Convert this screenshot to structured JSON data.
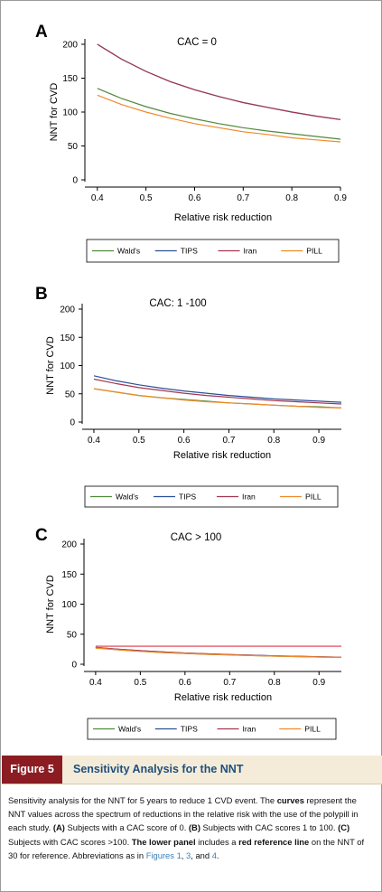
{
  "panels": [
    {
      "letter": "A",
      "title": "CAC = 0",
      "ylabel": "NNT for CVD",
      "xlabel": "Relative risk reduction",
      "legend": [
        "Wald's",
        "TIPS",
        "Iran",
        "PILL"
      ]
    },
    {
      "letter": "B",
      "title": "CAC: 1 -100",
      "ylabel": "NNT for CVD",
      "xlabel": "Relative risk reduction",
      "legend": [
        "Wald's",
        "TIPS",
        "Iran",
        "PILL"
      ]
    },
    {
      "letter": "C",
      "title": "CAC > 100",
      "ylabel": "NNT for CVD",
      "xlabel": "Relative risk reduction",
      "legend": [
        "Wald's",
        "TIPS",
        "Iran",
        "PILL"
      ]
    }
  ],
  "series_colors": {
    "Wald's": "#4f8a3a",
    "TIPS": "#2a4f9a",
    "Iran": "#a3364f",
    "PILL": "#f08a2a",
    "Reference": "#e05a6a"
  },
  "chart_data": [
    {
      "type": "line",
      "xlim": [
        0.38,
        0.9
      ],
      "ylim": [
        0,
        200
      ],
      "xticks": [
        0.4,
        0.5,
        0.6,
        0.7,
        0.8,
        0.9
      ],
      "yticks": [
        0,
        50,
        100,
        150,
        200
      ],
      "grid": false,
      "legend_position": "bottom",
      "x": [
        0.4,
        0.45,
        0.5,
        0.55,
        0.6,
        0.65,
        0.7,
        0.75,
        0.8,
        0.85,
        0.9
      ],
      "series": [
        {
          "name": "Wald's",
          "values": [
            135,
            120,
            108,
            98,
            90,
            83,
            77,
            72,
            68,
            64,
            60
          ]
        },
        {
          "name": "TIPS",
          "values": [
            200,
            178,
            160,
            145,
            133,
            123,
            114,
            107,
            100,
            94,
            89
          ]
        },
        {
          "name": "Iran",
          "values": [
            200,
            178,
            160,
            145,
            133,
            123,
            114,
            107,
            100,
            94,
            89
          ]
        },
        {
          "name": "PILL",
          "values": [
            125,
            111,
            100,
            91,
            83,
            77,
            71,
            67,
            62,
            59,
            56
          ]
        }
      ]
    },
    {
      "type": "line",
      "xlim": [
        0.38,
        0.95
      ],
      "ylim": [
        0,
        200
      ],
      "xticks": [
        0.4,
        0.5,
        0.6,
        0.7,
        0.8,
        0.9
      ],
      "yticks": [
        0,
        50,
        100,
        150,
        200
      ],
      "grid": false,
      "legend_position": "bottom",
      "x": [
        0.4,
        0.45,
        0.5,
        0.55,
        0.6,
        0.65,
        0.7,
        0.75,
        0.8,
        0.85,
        0.9,
        0.95
      ],
      "series": [
        {
          "name": "Wald's",
          "values": [
            59,
            53,
            47,
            43,
            40,
            37,
            34,
            32,
            30,
            28,
            27,
            25
          ]
        },
        {
          "name": "TIPS",
          "values": [
            82,
            73,
            66,
            60,
            55,
            51,
            47,
            44,
            41,
            39,
            37,
            35
          ]
        },
        {
          "name": "Iran",
          "values": [
            76,
            68,
            61,
            56,
            51,
            47,
            44,
            41,
            38,
            36,
            34,
            32
          ]
        },
        {
          "name": "PILL",
          "values": [
            59,
            53,
            47,
            43,
            39,
            36,
            34,
            32,
            30,
            28,
            26,
            25
          ]
        }
      ]
    },
    {
      "type": "line",
      "xlim": [
        0.38,
        0.95
      ],
      "ylim": [
        0,
        200
      ],
      "xticks": [
        0.4,
        0.5,
        0.6,
        0.7,
        0.8,
        0.9
      ],
      "yticks": [
        0,
        50,
        100,
        150,
        200
      ],
      "grid": false,
      "legend_position": "bottom",
      "reference_line": 30,
      "x": [
        0.4,
        0.45,
        0.5,
        0.55,
        0.6,
        0.65,
        0.7,
        0.75,
        0.8,
        0.85,
        0.9,
        0.95
      ],
      "series": [
        {
          "name": "Wald's",
          "values": [
            27,
            24,
            21.5,
            19.5,
            18,
            16.5,
            15.5,
            14.5,
            13.5,
            12.8,
            12,
            11.4
          ]
        },
        {
          "name": "TIPS",
          "values": [
            28,
            25,
            22.5,
            20.5,
            18.7,
            17.3,
            16,
            15,
            14,
            13.2,
            12.5,
            11.8
          ]
        },
        {
          "name": "Iran",
          "values": [
            28,
            25,
            22.5,
            20.5,
            18.7,
            17.3,
            16,
            15,
            14,
            13.2,
            12.5,
            11.8
          ]
        },
        {
          "name": "PILL",
          "values": [
            27,
            24,
            21.5,
            19.5,
            18,
            16.5,
            15.5,
            14.5,
            13.5,
            12.8,
            12,
            11.4
          ]
        }
      ]
    }
  ],
  "figure": {
    "label": "Figure 5",
    "title": "Sensitivity Analysis for the NNT"
  },
  "caption": {
    "t1": "Sensitivity analysis for the NNT for 5 years to reduce 1 CVD event. The ",
    "b1": "curves",
    "t2": " represent the NNT values across the spectrum of reductions in the relative risk with the use of the polypill in each study. ",
    "b2": "(A)",
    "t3": " Subjects with a CAC score of 0. ",
    "b3": "(B)",
    "t4": " Subjects with CAC scores 1 to 100. ",
    "b4": "(C)",
    "t5": " Subjects with CAC scores >100. ",
    "b5": "The lower panel",
    "t6": " includes a ",
    "b6": "red reference line",
    "t7": " on the NNT of 30 for reference. Abbreviations as in ",
    "r1": "Figures 1",
    "t8": ", ",
    "r2": "3",
    "t9": ", and ",
    "r3": "4",
    "t10": "."
  }
}
